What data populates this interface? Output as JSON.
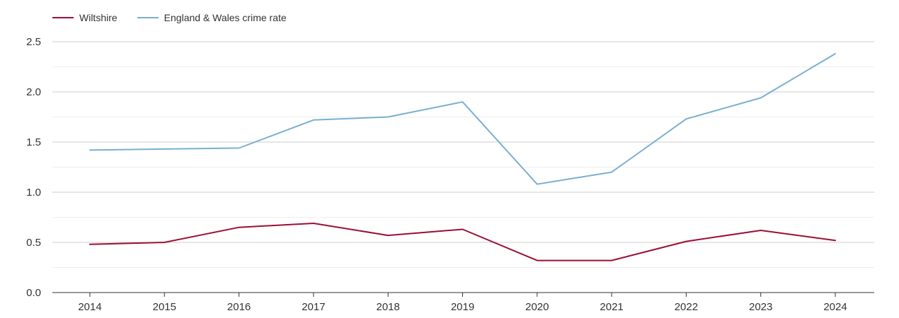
{
  "chart_data": {
    "type": "line",
    "title": "",
    "xlabel": "",
    "ylabel": "",
    "x": [
      "2014",
      "2015",
      "2016",
      "2017",
      "2018",
      "2019",
      "2020",
      "2021",
      "2022",
      "2023",
      "2024"
    ],
    "ylim": [
      0,
      2.5
    ],
    "yticks": [
      "0.0",
      "0.5",
      "1.0",
      "1.5",
      "2.0",
      "2.5"
    ],
    "grid": true,
    "legend_position": "top-left",
    "series": [
      {
        "name": "Wiltshire",
        "color": "#9b0f35",
        "values": [
          0.48,
          0.5,
          0.65,
          0.69,
          0.57,
          0.63,
          0.32,
          0.32,
          0.51,
          0.62,
          0.52
        ]
      },
      {
        "name": "England & Wales crime rate",
        "color": "#7aafcf",
        "values": [
          1.42,
          1.43,
          1.44,
          1.72,
          1.75,
          1.9,
          1.08,
          1.2,
          1.73,
          1.94,
          2.38
        ]
      }
    ]
  }
}
